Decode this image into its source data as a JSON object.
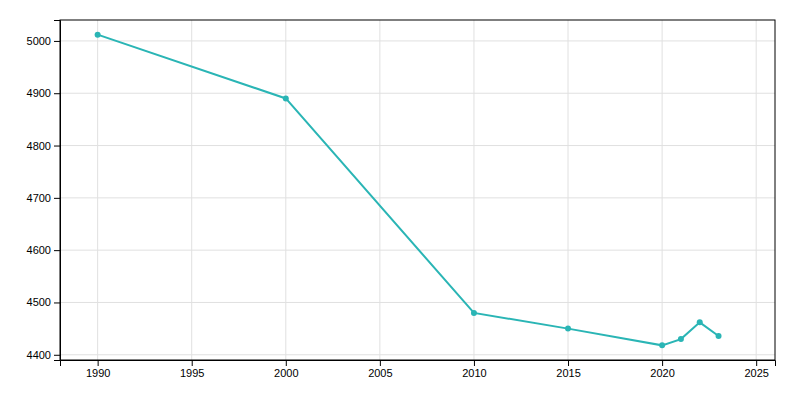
{
  "chart_data": {
    "type": "line",
    "x": [
      1990,
      2000,
      2010,
      2015,
      2020,
      2021,
      2022,
      2023
    ],
    "values": [
      5012,
      4890,
      4480,
      4450,
      4418,
      4430,
      4462,
      4436
    ],
    "color": "#2ab5b5",
    "marker": "circle",
    "xlim": [
      1988,
      2026
    ],
    "ylim": [
      4390,
      5040
    ],
    "xticks": [
      1990,
      1995,
      2000,
      2005,
      2010,
      2015,
      2020,
      2025
    ],
    "yticks": [
      4400,
      4500,
      4600,
      4700,
      4800,
      4900,
      5000
    ],
    "grid": true
  }
}
